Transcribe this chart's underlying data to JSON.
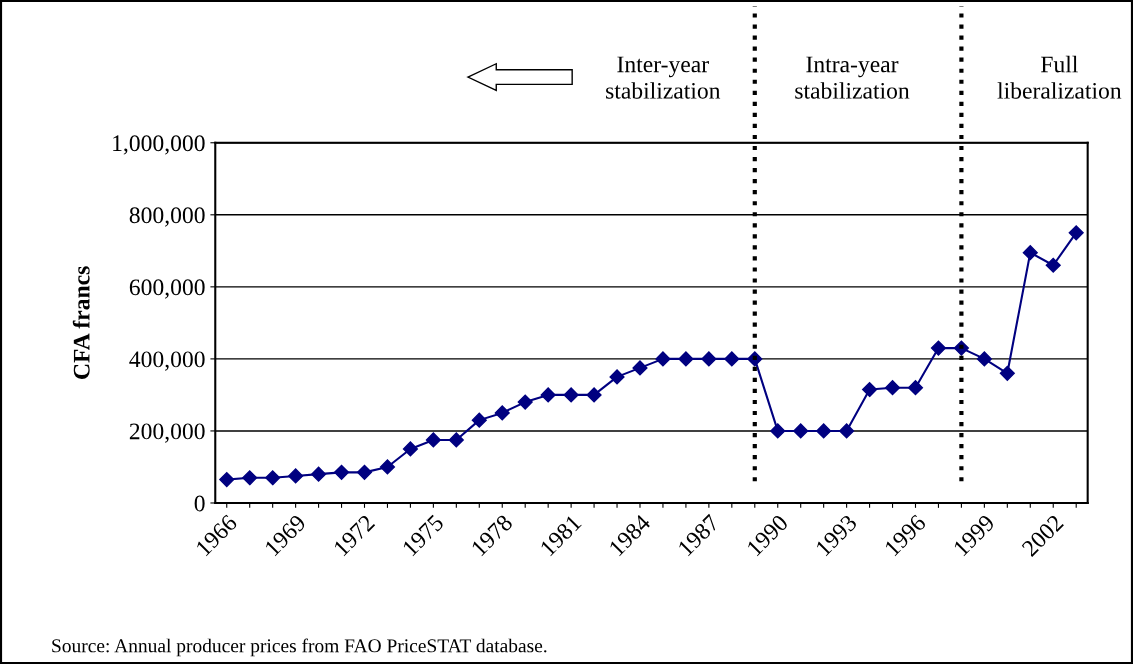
{
  "chart_data": {
    "type": "line",
    "ylabel": "CFA francs",
    "x": [
      1966,
      1967,
      1968,
      1969,
      1970,
      1971,
      1972,
      1973,
      1974,
      1975,
      1976,
      1977,
      1978,
      1979,
      1980,
      1981,
      1982,
      1983,
      1984,
      1985,
      1986,
      1987,
      1988,
      1989,
      1990,
      1991,
      1992,
      1993,
      1994,
      1995,
      1996,
      1997,
      1998,
      1999,
      2000,
      2001,
      2002,
      2003
    ],
    "series": [
      {
        "color": "#000080",
        "values": [
          65000,
          70000,
          70000,
          75000,
          80000,
          85000,
          85000,
          100000,
          150000,
          175000,
          175000,
          230000,
          250000,
          280000,
          300000,
          300000,
          300000,
          350000,
          375000,
          400000,
          400000,
          400000,
          400000,
          400000,
          200000,
          200000,
          200000,
          200000,
          315000,
          320000,
          320000,
          430000,
          430000,
          400000,
          360000,
          695000,
          660000,
          750000
        ]
      }
    ],
    "xlim": [
      1965.5,
      2003.5
    ],
    "xticks": [
      1966,
      {
        "value": 1967,
        "label": null
      },
      {
        "value": 1968,
        "label": null
      },
      1969,
      {
        "value": 1970,
        "label": null
      },
      {
        "value": 1971,
        "label": null
      },
      1972,
      {
        "value": 1973,
        "label": null
      },
      {
        "value": 1974,
        "label": null
      },
      1975,
      {
        "value": 1976,
        "label": null
      },
      {
        "value": 1977,
        "label": null
      },
      1978,
      {
        "value": 1979,
        "label": null
      },
      {
        "value": 1980,
        "label": null
      },
      1981,
      {
        "value": 1982,
        "label": null
      },
      {
        "value": 1983,
        "label": null
      },
      1984,
      {
        "value": 1985,
        "label": null
      },
      {
        "value": 1986,
        "label": null
      },
      1987,
      {
        "value": 1988,
        "label": null
      },
      {
        "value": 1989,
        "label": null
      },
      1990,
      {
        "value": 1991,
        "label": null
      },
      {
        "value": 1992,
        "label": null
      },
      1993,
      {
        "value": 1994,
        "label": null
      },
      {
        "value": 1995,
        "label": null
      },
      1996,
      {
        "value": 1997,
        "label": null
      },
      {
        "value": 1998,
        "label": null
      },
      1999,
      {
        "value": 2000,
        "label": null
      },
      {
        "value": 2001,
        "label": null
      },
      2002,
      {
        "value": 2003,
        "label": null
      }
    ],
    "ylim": [
      0,
      1000000
    ],
    "yticks": [
      0,
      {
        "value": 200000,
        "label": "200,000"
      },
      {
        "value": 400000,
        "label": "400,000"
      },
      {
        "value": 600000,
        "label": "600,000"
      },
      {
        "value": 800000,
        "label": "800,000"
      },
      {
        "value": 1000000,
        "label": "1,000,000"
      }
    ],
    "grid": "y",
    "marker": "diamond",
    "line_style": "solid",
    "legend": false,
    "ref_lines": [
      {
        "axis": "x",
        "value": 1989,
        "color": "#000000",
        "line_style": "dotted"
      },
      {
        "axis": "x",
        "value": 1998,
        "color": "#000000",
        "line_style": "dotted"
      }
    ],
    "annotations": [
      "Inter-year\nstabilization",
      "Intra-year\nstabilization",
      "Full\nliberalization",
      "Source: Annual producer prices from FAO PriceSTAT database."
    ]
  }
}
